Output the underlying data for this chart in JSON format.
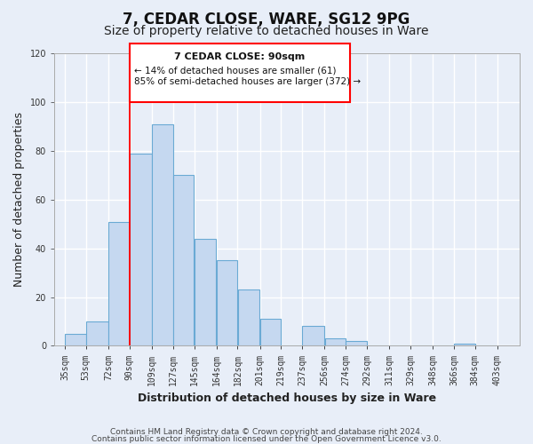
{
  "title": "7, CEDAR CLOSE, WARE, SG12 9PG",
  "subtitle": "Size of property relative to detached houses in Ware",
  "xlabel": "Distribution of detached houses by size in Ware",
  "ylabel": "Number of detached properties",
  "bar_left_edges": [
    35,
    53,
    72,
    90,
    109,
    127,
    145,
    164,
    182,
    201,
    219,
    237,
    256,
    274,
    292,
    311,
    329,
    348,
    366,
    384
  ],
  "bar_heights": [
    5,
    10,
    51,
    79,
    91,
    70,
    44,
    35,
    23,
    11,
    0,
    8,
    3,
    2,
    0,
    0,
    0,
    0,
    1,
    0
  ],
  "bar_widths": [
    18,
    19,
    18,
    19,
    18,
    18,
    19,
    18,
    19,
    18,
    18,
    19,
    18,
    18,
    19,
    18,
    19,
    18,
    18,
    19
  ],
  "bar_color": "#c5d8f0",
  "bar_edgecolor": "#6aaad4",
  "vline_x": 90,
  "vline_color": "red",
  "xlim": [
    26,
    422
  ],
  "ylim": [
    0,
    120
  ],
  "yticks": [
    0,
    20,
    40,
    60,
    80,
    100,
    120
  ],
  "xtick_labels": [
    "35sqm",
    "53sqm",
    "72sqm",
    "90sqm",
    "109sqm",
    "127sqm",
    "145sqm",
    "164sqm",
    "182sqm",
    "201sqm",
    "219sqm",
    "237sqm",
    "256sqm",
    "274sqm",
    "292sqm",
    "311sqm",
    "329sqm",
    "348sqm",
    "366sqm",
    "384sqm",
    "403sqm"
  ],
  "xtick_positions": [
    35,
    53,
    72,
    90,
    109,
    127,
    145,
    164,
    182,
    201,
    219,
    237,
    256,
    274,
    292,
    311,
    329,
    348,
    366,
    384,
    403
  ],
  "annotation_title": "7 CEDAR CLOSE: 90sqm",
  "annotation_line1": "← 14% of detached houses are smaller (61)",
  "annotation_line2": "85% of semi-detached houses are larger (372) →",
  "footer_line1": "Contains HM Land Registry data © Crown copyright and database right 2024.",
  "footer_line2": "Contains public sector information licensed under the Open Government Licence v3.0.",
  "background_color": "#e8eef8",
  "plot_bg_color": "#e8eef8",
  "grid_color": "#ffffff",
  "title_fontsize": 12,
  "subtitle_fontsize": 10,
  "axis_label_fontsize": 9,
  "tick_fontsize": 7,
  "footer_fontsize": 6.5
}
